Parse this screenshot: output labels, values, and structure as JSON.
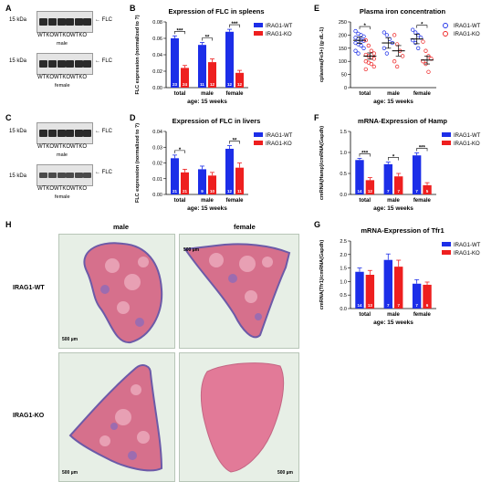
{
  "panel_letters": {
    "A": "A",
    "B": "B",
    "C": "C",
    "D": "D",
    "E": "E",
    "F": "F",
    "G": "G",
    "H": "H"
  },
  "colors": {
    "wt": "#1c2ee8",
    "ko": "#ee1f1f"
  },
  "blots": {
    "marker": "15 kDa",
    "band": "FLC",
    "lanes": "WTKOWTKOWTKO",
    "lanes_b": "WTKOWTKOWTKO",
    "male": "male",
    "female": "female"
  },
  "histology": {
    "col_male": "male",
    "col_female": "female",
    "row_wt": "IRAG1-WT",
    "row_ko": "IRAG1-KO",
    "scale": "500 µm"
  },
  "chart_data": [
    {
      "id": "B",
      "type": "bar",
      "title": "Expression of FLC in spleens",
      "ylabel": "FLC expression (normalized to ?)",
      "xlabel": "age: 15 weeks",
      "categories": [
        "total",
        "male",
        "female"
      ],
      "ylim": [
        0,
        0.08
      ],
      "yticks": [
        "0.00",
        "0.02",
        "0.04",
        "0.06",
        "0.08"
      ],
      "series": [
        {
          "name": "IRAG1-WT",
          "values": [
            0.06,
            0.052,
            0.068
          ],
          "err": [
            0.003,
            0.003,
            0.003
          ],
          "n": [
            "23",
            "11",
            "12"
          ]
        },
        {
          "name": "IRAG1-KO",
          "values": [
            0.024,
            0.031,
            0.018
          ],
          "err": [
            0.003,
            0.004,
            0.003
          ],
          "n": [
            "24",
            "12",
            "12"
          ]
        }
      ],
      "sig": [
        "***",
        "**",
        "***"
      ],
      "legend": "top-right"
    },
    {
      "id": "D",
      "type": "bar",
      "title": "Expression of FLC in livers",
      "ylabel": "FLC expression (normalized to ?)",
      "xlabel": "age: 15 weeks",
      "categories": [
        "total",
        "male",
        "female"
      ],
      "ylim": [
        0,
        0.04
      ],
      "yticks": [
        "0.00",
        "0.01",
        "0.02",
        "0.03",
        "0.04"
      ],
      "series": [
        {
          "name": "IRAG1-WT",
          "values": [
            0.023,
            0.016,
            0.029
          ],
          "err": [
            0.002,
            0.002,
            0.002
          ],
          "n": [
            "21",
            "9",
            "12"
          ]
        },
        {
          "name": "IRAG1-KO",
          "values": [
            0.014,
            0.012,
            0.017
          ],
          "err": [
            0.002,
            0.002,
            0.003
          ],
          "n": [
            "21",
            "10",
            "11"
          ]
        }
      ],
      "sig": [
        "*",
        "",
        "**"
      ],
      "legend": "top-right"
    },
    {
      "id": "E",
      "type": "scatter",
      "title": "Plasma iron concentration",
      "ylabel": "cplasma(Fe3+) (g·dL-1)",
      "xlabel": "age: 15 weeks",
      "categories": [
        "total",
        "male",
        "female"
      ],
      "ylim": [
        0,
        250
      ],
      "yticks": [
        "0",
        "50",
        "100",
        "150",
        "200",
        "250"
      ],
      "series": [
        {
          "name": "IRAG1-WT",
          "means": [
            180,
            170,
            185
          ],
          "sem": [
            12,
            20,
            18
          ],
          "points": [
            [
              215,
              205,
              200,
              195,
              190,
              185,
              180,
              178,
              170,
              165,
              160,
              150,
              140,
              130
            ],
            [
              210,
              200,
              185,
              170,
              150,
              130
            ],
            [
              220,
              210,
              200,
              190,
              180,
              170,
              150
            ]
          ]
        },
        {
          "name": "IRAG1-KO",
          "means": [
            120,
            140,
            105
          ],
          "sem": [
            12,
            20,
            15
          ],
          "points": [
            [
              180,
              160,
              140,
              130,
              125,
              120,
              115,
              110,
              100,
              95,
              90,
              80,
              70
            ],
            [
              200,
              165,
              140,
              120,
              100,
              80
            ],
            [
              175,
              140,
              120,
              110,
              100,
              90,
              60
            ]
          ]
        }
      ],
      "sig": [
        "*",
        "",
        "*"
      ],
      "legend": "top-right"
    },
    {
      "id": "F",
      "type": "bar",
      "title": "mRNA-Expression of Hamp",
      "ylabel": "cmRNA(Hamp)/cmRNA(Gapdh)",
      "xlabel": "age: 15 weeks",
      "categories": [
        "total",
        "male",
        "female"
      ],
      "ylim": [
        0,
        1.5
      ],
      "yticks": [
        "0.0",
        "0.5",
        "1.0",
        "1.5"
      ],
      "series": [
        {
          "name": "IRAG1-WT",
          "values": [
            0.82,
            0.72,
            0.93
          ],
          "err": [
            0.04,
            0.05,
            0.06
          ],
          "n": [
            "14",
            "7",
            "7"
          ]
        },
        {
          "name": "IRAG1-KO",
          "values": [
            0.34,
            0.43,
            0.22
          ],
          "err": [
            0.06,
            0.07,
            0.06
          ],
          "n": [
            "12",
            "7",
            "5"
          ]
        }
      ],
      "sig": [
        "***",
        "*",
        "***"
      ],
      "legend": "top-right"
    },
    {
      "id": "G",
      "type": "bar",
      "title": "mRNA-Expression of Tfr1",
      "ylabel": "cmRNA(Tfr1)/cmRNA(Gapdh)",
      "xlabel": "age: 15 weeks",
      "categories": [
        "total",
        "male",
        "female"
      ],
      "ylim": [
        0,
        2.5
      ],
      "yticks": [
        "0.0",
        "0.5",
        "1.0",
        "1.5",
        "2.0",
        "2.5"
      ],
      "series": [
        {
          "name": "IRAG1-WT",
          "values": [
            1.36,
            1.8,
            0.92
          ],
          "err": [
            0.14,
            0.22,
            0.15
          ],
          "n": [
            "14",
            "7",
            "7"
          ]
        },
        {
          "name": "IRAG1-KO",
          "values": [
            1.25,
            1.55,
            0.88
          ],
          "err": [
            0.16,
            0.24,
            0.1
          ],
          "n": [
            "13",
            "7",
            "6"
          ]
        }
      ],
      "sig": [
        "",
        "",
        ""
      ],
      "legend": "top-right"
    }
  ]
}
